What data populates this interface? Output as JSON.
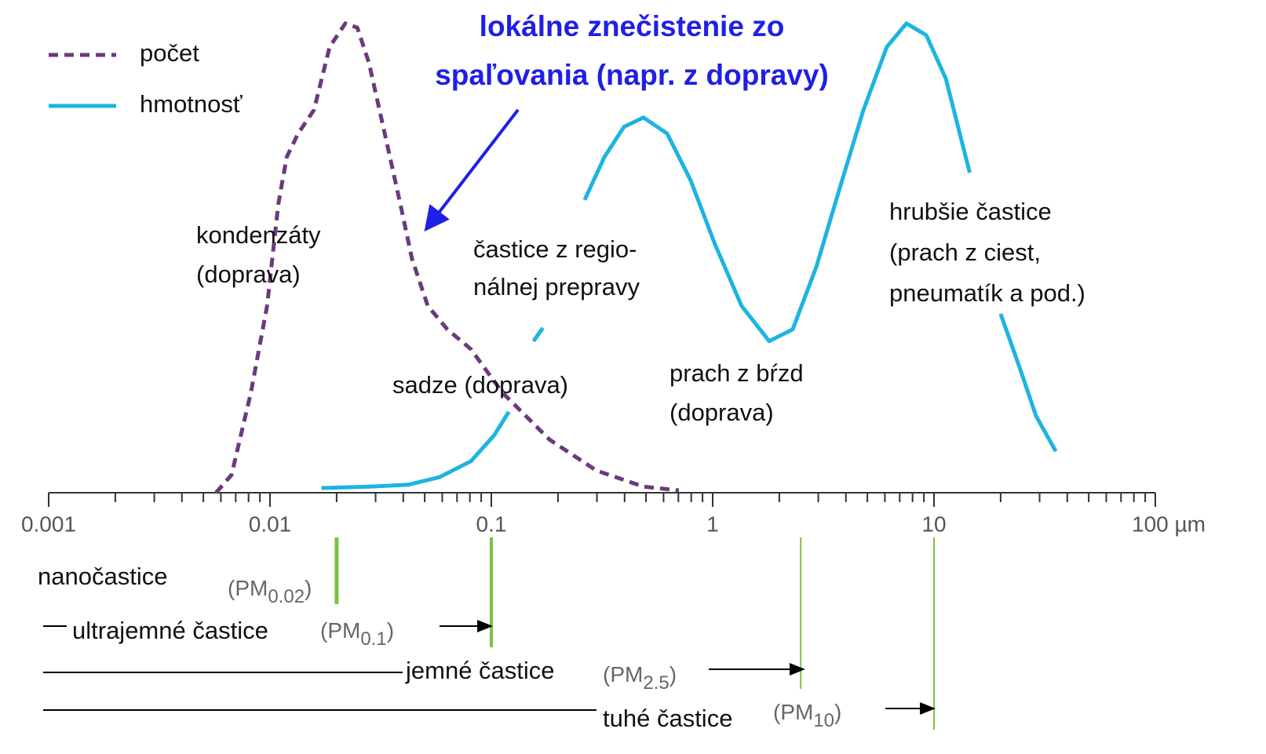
{
  "chart_data": {
    "type": "line",
    "x_log_scale": true,
    "xlim": [
      0.001,
      100
    ],
    "xticks": [
      0.001,
      0.01,
      0.1,
      1,
      10,
      {
        "value": 100,
        "label": "100 µm"
      }
    ],
    "ylim": [
      0,
      100
    ],
    "legend": "top-left",
    "callout": [
      "lokálne znečistenie zo",
      "spaľovania (napr. z dopravy)"
    ],
    "callout_color": "#1f1fe6",
    "series": [
      {
        "name": "počet",
        "color": "#6b3a7d",
        "dashed": true,
        "x": [
          0.0057,
          0.0067,
          0.0082,
          0.0097,
          0.0109,
          0.0119,
          0.0134,
          0.0158,
          0.0186,
          0.0219,
          0.0248,
          0.028,
          0.033,
          0.0388,
          0.0438,
          0.0516,
          0.0633,
          0.0809,
          0.112,
          0.183,
          0.299,
          0.487,
          0.704
        ],
        "values": [
          0,
          3.8,
          21.3,
          39.7,
          61.3,
          71.3,
          76.3,
          81.3,
          94.7,
          99.7,
          98.8,
          91.3,
          76.3,
          61.3,
          49.7,
          39.7,
          34.7,
          30.5,
          21.3,
          11.3,
          4.7,
          1.3,
          0.5
        ]
      },
      {
        "name": "hmotnosť",
        "color": "#1eb4e0",
        "dashed": false,
        "x": [
          0.0171,
          0.028,
          0.0421,
          0.0583,
          0.0809,
          0.103,
          0.12,
          null,
          0.155,
          0.171,
          null,
          0.264,
          0.324,
          0.397,
          0.487,
          0.623,
          0.796,
          1.02,
          1.35,
          1.8,
          2.3,
          2.94,
          3.75,
          4.8,
          6.12,
          7.51,
          9.22,
          11.3,
          14.5,
          null,
          20.0,
          24.5,
          28.9,
          35.5
        ],
        "values": [
          1,
          1.3,
          1.7,
          3.3,
          6.7,
          12.2,
          17.2,
          null,
          32.2,
          35,
          null,
          62.2,
          71.3,
          77.7,
          79.7,
          76.3,
          66.3,
          53,
          39.7,
          32.2,
          34.7,
          48,
          64.7,
          81.3,
          94.7,
          99.7,
          97.2,
          88,
          68,
          null,
          38,
          26.3,
          16.3,
          8.8
        ]
      }
    ],
    "annotations": [
      {
        "text": [
          "kondenzáty",
          "(doprava)"
        ]
      },
      {
        "text": [
          "častice z regio-",
          "nálnej prepravy"
        ]
      },
      {
        "text": [
          "sadze (doprava)"
        ]
      },
      {
        "text": [
          "prach z bŕzd",
          "(doprava)"
        ]
      },
      {
        "text": [
          "hrubšie častice",
          "(prach z ciest,",
          "pneumatík a pod.)"
        ]
      }
    ],
    "size_classes": [
      {
        "name": "nanočastice",
        "pm": [
          "(PM",
          "0.02",
          ")"
        ],
        "cut": 0.02
      },
      {
        "name": "ultrajemné častice",
        "pm": [
          "(PM",
          "0.1",
          ")"
        ],
        "cut": 0.1
      },
      {
        "name": "jemné častice",
        "pm": [
          "(PM",
          "2.5",
          ")"
        ],
        "cut": 2.5
      },
      {
        "name": "tuhé častice",
        "pm": [
          "(PM",
          "10",
          ")"
        ],
        "cut": 10
      }
    ],
    "cut_color": "#7cc242"
  }
}
